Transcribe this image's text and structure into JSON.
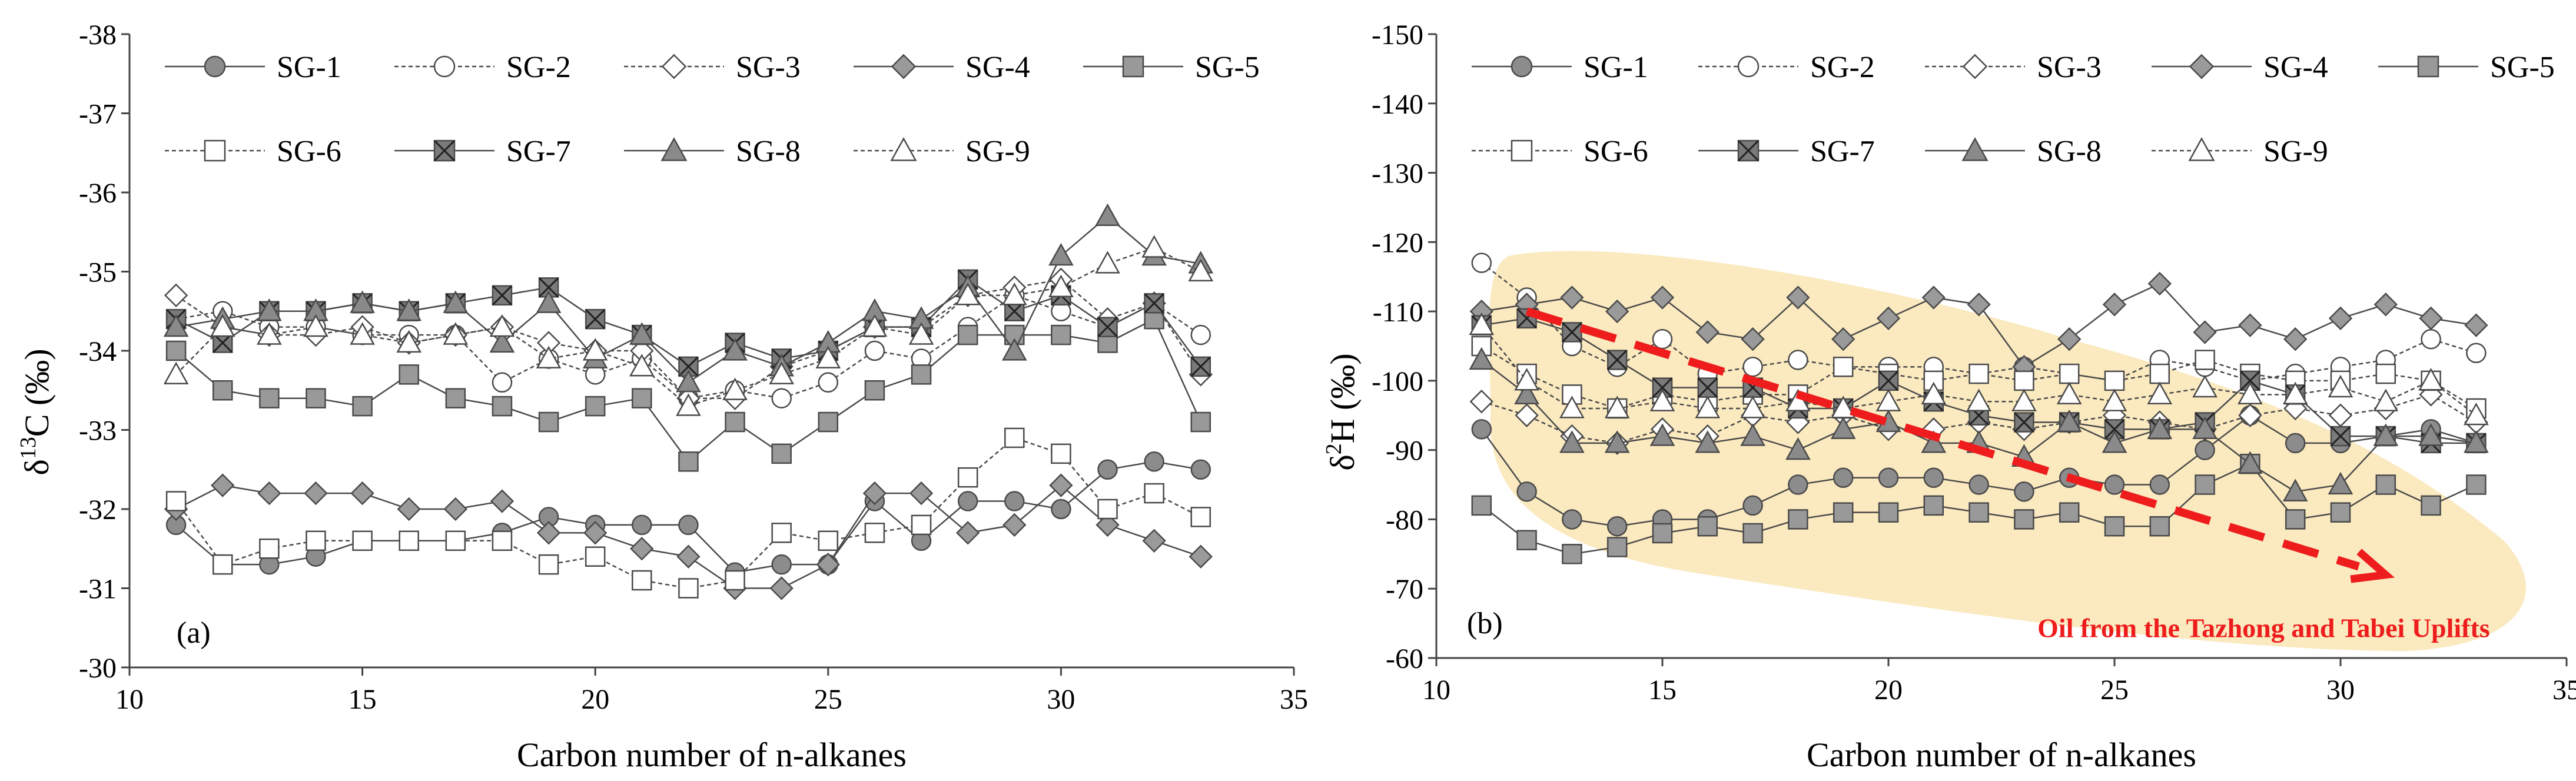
{
  "chart_data": [
    {
      "type": "line",
      "panel_label": "(a)",
      "title": "",
      "xlabel": "Carbon number of n-alkanes",
      "ylabel_prefix": "δ",
      "ylabel_sup": "13",
      "ylabel_suffix": "C (‰)",
      "xlim": [
        10,
        35
      ],
      "ylim": [
        -30,
        -38
      ],
      "xticks": [
        10,
        15,
        20,
        25,
        30,
        35
      ],
      "xtick_labels": [
        "10",
        "15",
        "20",
        "25",
        "30",
        "35"
      ],
      "yticks": [
        -30,
        -31,
        -32,
        -33,
        -34,
        -35,
        -36,
        -37,
        -38
      ],
      "ytick_labels": [
        "-30",
        "-31",
        "-32",
        "-33",
        "-34",
        "-35",
        "-36",
        "-37",
        "-38"
      ],
      "legend_position": "top",
      "x": [
        11,
        12,
        13,
        14,
        15,
        16,
        17,
        18,
        19,
        20,
        21,
        22,
        23,
        24,
        25,
        26,
        27,
        28,
        29,
        30,
        31,
        32,
        33
      ],
      "series": [
        {
          "name": "SG-1",
          "values": [
            -31.8,
            -31.3,
            -31.3,
            -31.4,
            -31.6,
            -31.6,
            -31.6,
            -31.7,
            -31.9,
            -31.8,
            -31.8,
            -31.8,
            -31.2,
            -31.3,
            -31.3,
            -32.1,
            -31.6,
            -32.1,
            -32.1,
            -32.0,
            -32.5,
            -32.6,
            -32.5
          ]
        },
        {
          "name": "SG-2",
          "values": [
            -34.4,
            -34.5,
            -34.3,
            -34.3,
            -34.2,
            -34.2,
            -34.2,
            -33.6,
            -33.9,
            -33.7,
            -33.9,
            -33.4,
            -33.5,
            -33.4,
            -33.6,
            -34.0,
            -33.9,
            -34.3,
            -34.7,
            -34.5,
            -34.3,
            -34.6,
            -34.2
          ]
        },
        {
          "name": "SG-3",
          "values": [
            -34.7,
            -34.3,
            -34.2,
            -34.2,
            -34.3,
            -34.1,
            -34.2,
            -34.3,
            -34.1,
            -34.0,
            -34.0,
            -33.4,
            -33.4,
            -33.8,
            -34.0,
            -34.3,
            -34.3,
            -34.7,
            -34.8,
            -34.9,
            -34.4,
            -34.6,
            -33.7
          ]
        },
        {
          "name": "SG-4",
          "values": [
            -32.0,
            -32.3,
            -32.2,
            -32.2,
            -32.2,
            -32.0,
            -32.0,
            -32.1,
            -31.7,
            -31.7,
            -31.5,
            -31.4,
            -31.0,
            -31.0,
            -31.3,
            -32.2,
            -32.2,
            -31.7,
            -31.8,
            -32.3,
            -31.8,
            -31.6,
            -31.4
          ]
        },
        {
          "name": "SG-5",
          "values": [
            -34.0,
            -33.5,
            -33.4,
            -33.4,
            -33.3,
            -33.7,
            -33.4,
            -33.3,
            -33.1,
            -33.3,
            -33.4,
            -32.6,
            -33.1,
            -32.7,
            -33.1,
            -33.5,
            -33.7,
            -34.2,
            -34.2,
            -34.2,
            -34.1,
            -34.4,
            -33.1
          ]
        },
        {
          "name": "SG-6",
          "values": [
            -32.1,
            -31.3,
            -31.5,
            -31.6,
            -31.6,
            -31.6,
            -31.6,
            -31.6,
            -31.3,
            -31.4,
            -31.1,
            -31.0,
            -31.1,
            -31.7,
            -31.6,
            -31.7,
            -31.8,
            -32.4,
            -32.9,
            -32.7,
            -32.0,
            -32.2,
            -31.9
          ]
        },
        {
          "name": "SG-7",
          "values": [
            -34.4,
            -34.1,
            -34.5,
            -34.5,
            -34.6,
            -34.5,
            -34.6,
            -34.7,
            -34.8,
            -34.4,
            -34.2,
            -33.8,
            -34.1,
            -33.9,
            -34.0,
            -34.3,
            -34.3,
            -34.9,
            -34.5,
            -34.7,
            -34.3,
            -34.6,
            -33.8
          ]
        },
        {
          "name": "SG-8",
          "values": [
            -34.3,
            -34.4,
            -34.5,
            -34.5,
            -34.6,
            -34.5,
            -34.6,
            -34.1,
            -34.6,
            -33.9,
            -34.2,
            -33.6,
            -34.0,
            -33.8,
            -34.1,
            -34.5,
            -34.4,
            -34.8,
            -34.0,
            -35.2,
            -35.7,
            -35.2,
            -35.1
          ]
        },
        {
          "name": "SG-9",
          "values": [
            -33.7,
            -34.3,
            -34.2,
            -34.3,
            -34.2,
            -34.1,
            -34.2,
            -34.3,
            -33.9,
            -34.0,
            -33.8,
            -33.3,
            -33.5,
            -33.7,
            -33.9,
            -34.3,
            -34.2,
            -34.7,
            -34.7,
            -34.8,
            -35.1,
            -35.3,
            -35.0
          ]
        }
      ]
    },
    {
      "type": "line",
      "panel_label": "(b)",
      "title": "",
      "xlabel": "Carbon number of n-alkanes",
      "ylabel_prefix": "δ",
      "ylabel_sup": "2",
      "ylabel_suffix": "H (‰)",
      "xlim": [
        10,
        35
      ],
      "ylim": [
        -60,
        -150
      ],
      "xticks": [
        10,
        15,
        20,
        25,
        30,
        35
      ],
      "xtick_labels": [
        "10",
        "15",
        "20",
        "25",
        "30",
        "35"
      ],
      "yticks": [
        -60,
        -70,
        -80,
        -90,
        -100,
        -110,
        -120,
        -130,
        -140,
        -150
      ],
      "ytick_labels": [
        "-60",
        "-70",
        "-80",
        "-90",
        "-100",
        "-110",
        "-120",
        "-130",
        "-140",
        "-150"
      ],
      "legend_position": "top",
      "annotation": "Oil from the Tazhong and Tabei Uplifts",
      "arrow_from": [
        12,
        -110
      ],
      "arrow_to": [
        31,
        -72
      ],
      "x": [
        11,
        12,
        13,
        14,
        15,
        16,
        17,
        18,
        19,
        20,
        21,
        22,
        23,
        24,
        25,
        26,
        27,
        28,
        29,
        30,
        31,
        32,
        33
      ],
      "series": [
        {
          "name": "SG-1",
          "values": [
            -93,
            -84,
            -80,
            -79,
            -80,
            -80,
            -82,
            -85,
            -86,
            -86,
            -86,
            -85,
            -84,
            -86,
            -85,
            -85,
            -90,
            -95,
            -91,
            -91,
            -92,
            -93,
            -91
          ]
        },
        {
          "name": "SG-2",
          "values": [
            -117,
            -112,
            -105,
            -102,
            -106,
            -101,
            -102,
            -103,
            -102,
            -102,
            -102,
            -101,
            -102,
            -101,
            -100,
            -103,
            -102,
            -100,
            -101,
            -102,
            -103,
            -106,
            -104
          ]
        },
        {
          "name": "SG-3",
          "values": [
            -97,
            -95,
            -92,
            -91,
            -93,
            -92,
            -95,
            -94,
            -95,
            -93,
            -93,
            -94,
            -93,
            -94,
            -95,
            -94,
            -93,
            -95,
            -96,
            -95,
            -96,
            -98,
            -94
          ]
        },
        {
          "name": "SG-4",
          "values": [
            -110,
            -111,
            -112,
            -110,
            -112,
            -107,
            -106,
            -112,
            -106,
            -109,
            -112,
            -111,
            -102,
            -106,
            -111,
            -114,
            -107,
            -108,
            -106,
            -109,
            -111,
            -109,
            -108
          ]
        },
        {
          "name": "SG-5",
          "values": [
            -82,
            -77,
            -75,
            -76,
            -78,
            -79,
            -78,
            -80,
            -81,
            -81,
            -82,
            -81,
            -80,
            -81,
            -79,
            -79,
            -85,
            -88,
            -80,
            -81,
            -85,
            -82,
            -85
          ]
        },
        {
          "name": "SG-6",
          "values": [
            -105,
            -101,
            -98,
            -96,
            -98,
            -97,
            -98,
            -98,
            -102,
            -101,
            -100,
            -101,
            -100,
            -101,
            -100,
            -101,
            -103,
            -101,
            -100,
            -100,
            -101,
            -100,
            -96
          ]
        },
        {
          "name": "SG-7",
          "values": [
            -108,
            -109,
            -107,
            -103,
            -99,
            -99,
            -99,
            -96,
            -96,
            -100,
            -97,
            -95,
            -94,
            -94,
            -93,
            -93,
            -94,
            -100,
            -98,
            -92,
            -92,
            -91,
            -91
          ]
        },
        {
          "name": "SG-8",
          "values": [
            -103,
            -98,
            -91,
            -91,
            -92,
            -91,
            -92,
            -90,
            -93,
            -94,
            -91,
            -91,
            -89,
            -94,
            -91,
            -93,
            -93,
            -88,
            -84,
            -85,
            -92,
            -92,
            -91
          ]
        },
        {
          "name": "SG-9",
          "values": [
            -108,
            -100,
            -96,
            -96,
            -97,
            -96,
            -96,
            -97,
            -96,
            -97,
            -98,
            -97,
            -97,
            -98,
            -97,
            -98,
            -99,
            -98,
            -98,
            -99,
            -97,
            -100,
            -95
          ]
        }
      ]
    }
  ]
}
